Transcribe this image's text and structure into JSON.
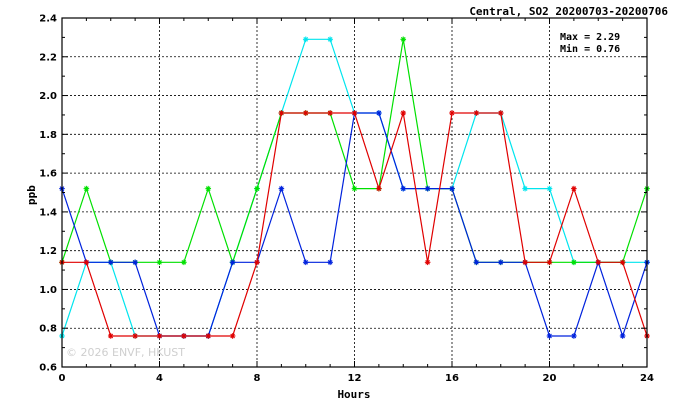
{
  "chart_data": {
    "type": "line",
    "title": "Central, SO2 20200703-20200706",
    "xlabel": "Hours",
    "ylabel": "ppb",
    "xlim": [
      0,
      24
    ],
    "ylim": [
      0.6,
      2.4
    ],
    "xticks": [
      0,
      4,
      8,
      12,
      16,
      20,
      24
    ],
    "yticks": [
      0.6,
      0.8,
      1.0,
      1.2,
      1.4,
      1.6,
      1.8,
      2.0,
      2.2,
      2.4
    ],
    "ytick_labels": [
      "0.6",
      "0.8",
      "1.0",
      "1.2",
      "1.4",
      "1.6",
      "1.8",
      "2.0",
      "2.2",
      "2.4"
    ],
    "grid": true,
    "stats": {
      "max": "Max = 2.29",
      "min": "Min = 0.76"
    },
    "watermark": "© 2026 ENVF, HKUST",
    "x": [
      0,
      1,
      2,
      3,
      4,
      5,
      6,
      7,
      8,
      9,
      10,
      11,
      12,
      13,
      14,
      15,
      16,
      17,
      18,
      19,
      20,
      21,
      22,
      23,
      24
    ],
    "series": [
      {
        "color": "#00e5ee",
        "values": [
          0.76,
          1.14,
          1.14,
          0.76,
          0.76,
          0.76,
          0.76,
          1.14,
          1.52,
          1.91,
          2.29,
          2.29,
          1.91,
          1.91,
          1.52,
          1.52,
          1.52,
          1.91,
          1.91,
          1.52,
          1.52,
          1.14,
          1.14,
          1.14,
          1.14
        ]
      },
      {
        "color": "#00e000",
        "values": [
          1.14,
          1.52,
          1.14,
          1.14,
          1.14,
          1.14,
          1.52,
          1.14,
          1.52,
          1.91,
          1.91,
          1.91,
          1.52,
          1.52,
          2.29,
          1.52,
          1.52,
          1.14,
          1.14,
          1.14,
          1.14,
          1.14,
          1.14,
          1.14,
          1.52
        ]
      },
      {
        "color": "#0022dd",
        "values": [
          1.52,
          1.14,
          1.14,
          1.14,
          0.76,
          0.76,
          0.76,
          1.14,
          1.14,
          1.52,
          1.14,
          1.14,
          1.91,
          1.91,
          1.52,
          1.52,
          1.52,
          1.14,
          1.14,
          1.14,
          0.76,
          0.76,
          1.14,
          0.76,
          1.14
        ]
      },
      {
        "color": "#e00000",
        "values": [
          1.14,
          1.14,
          0.76,
          0.76,
          0.76,
          0.76,
          0.76,
          0.76,
          1.14,
          1.91,
          1.91,
          1.91,
          1.91,
          1.52,
          1.91,
          1.14,
          1.91,
          1.91,
          1.91,
          1.14,
          1.14,
          1.52,
          1.14,
          1.14,
          0.76
        ]
      }
    ]
  }
}
